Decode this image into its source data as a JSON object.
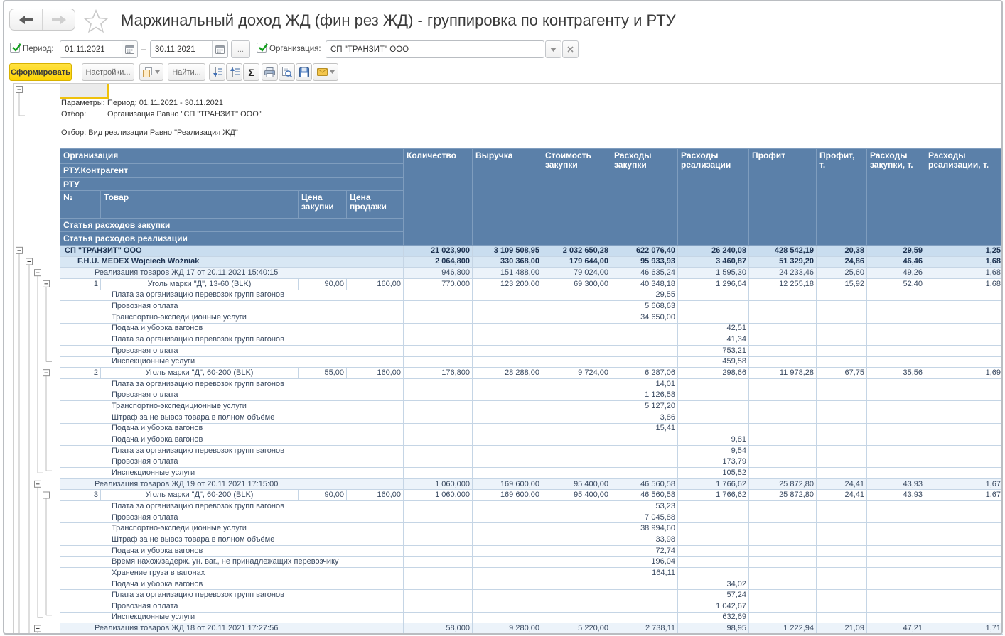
{
  "titlebar": {
    "title": "Маржинальный доход ЖД (фин рез ЖД) - группировка по контрагенту и РТУ"
  },
  "filters": {
    "period_label": "Период:",
    "period_from": "01.11.2021",
    "period_dash": "–",
    "period_to": "30.11.2021",
    "more_button": "...",
    "org_label": "Организация:",
    "org_value": "СП \"ТРАНЗИТ\" ООО"
  },
  "actions": {
    "generate": "Сформировать",
    "settings": "Настройки...",
    "find": "Найти...",
    "sigma": "Σ"
  },
  "params": {
    "label_params": "Параметры:",
    "value_params": "Период: 01.11.2021 - 30.11.2021",
    "label_filter": "Отбор:",
    "value_filter": "Организация Равно \"СП \"ТРАНЗИТ\" ООО\"",
    "filter2": "Отбор: Вид реализации Равно \"Реализация ЖД\""
  },
  "colors": {
    "header_bg": "#5b80a9",
    "accent_yellow": "#fdd404",
    "level1_bg": "#c9ddef",
    "level2_bg": "#d8e7f4",
    "level3_bg": "#ecf3fa"
  },
  "table": {
    "headers": {
      "org": "Организация",
      "contragent": "РТУ.Контрагент",
      "rtu": "РТУ",
      "num": "№",
      "product": "Товар",
      "purchase_price": "Цена закупки",
      "sell_price": "Цена продажи",
      "expense_purchase": "Статья расходов закупки",
      "expense_sales": "Статья расходов реализации",
      "value_cols": [
        "Количество",
        "Выручка",
        "Стоимость закупки",
        "Расходы закупки",
        "Расходы реализации",
        "Профит",
        "Профит, т.",
        "Расходы закупки, т.",
        "Расходы реализации, т."
      ]
    },
    "rows": [
      {
        "t": "org",
        "label": "СП \"ТРАНЗИТ\" ООО",
        "v": [
          "21 023,900",
          "3 109 508,95",
          "2 032 650,28",
          "622 076,40",
          "26 240,08",
          "428 542,19",
          "20,38",
          "29,59",
          "1,25"
        ]
      },
      {
        "t": "contragent",
        "label": "F.H.U. MEDEX Wojciech Woźniak",
        "v": [
          "2 064,800",
          "330 368,00",
          "179 644,00",
          "95 933,93",
          "3 460,87",
          "51 329,20",
          "24,86",
          "46,46",
          "1,68"
        ]
      },
      {
        "t": "rtu",
        "label": "Реализация товаров ЖД 17 от 20.11.2021 15:40:15",
        "v": [
          "946,800",
          "151 488,00",
          "79 024,00",
          "46 635,24",
          "1 595,30",
          "24 233,46",
          "25,60",
          "49,26",
          "1,68"
        ]
      },
      {
        "t": "item",
        "num": "1",
        "product": "Уголь марки \"Д\", 13-60 (BLK)",
        "pp": "90,00",
        "sp": "160,00",
        "v": [
          "770,000",
          "123 200,00",
          "69 300,00",
          "40 348,18",
          "1 296,64",
          "12 255,18",
          "15,92",
          "52,40",
          "1,68"
        ]
      },
      {
        "t": "exp",
        "label": "Плата за организацию перевозок групп вагонов",
        "ci": 3,
        "val": "29,55"
      },
      {
        "t": "exp",
        "label": "Провозная оплата",
        "ci": 3,
        "val": "5 668,63"
      },
      {
        "t": "exp",
        "label": "Транспортно-экспедиционные услуги",
        "ci": 3,
        "val": "34 650,00"
      },
      {
        "t": "exp",
        "label": "Подача и уборка вагонов",
        "ci": 4,
        "val": "42,51"
      },
      {
        "t": "exp",
        "label": "Плата за организацию перевозок групп вагонов",
        "ci": 4,
        "val": "41,34"
      },
      {
        "t": "exp",
        "label": "Провозная оплата",
        "ci": 4,
        "val": "753,21"
      },
      {
        "t": "exp",
        "label": "Инспекционные услуги",
        "ci": 4,
        "val": "459,58"
      },
      {
        "t": "item",
        "num": "2",
        "product": "Уголь марки \"Д\", 60-200 (BLK)",
        "pp": "55,00",
        "sp": "160,00",
        "v": [
          "176,800",
          "28 288,00",
          "9 724,00",
          "6 287,06",
          "298,66",
          "11 978,28",
          "67,75",
          "35,56",
          "1,69"
        ]
      },
      {
        "t": "exp",
        "label": "Плата за организацию перевозок групп вагонов",
        "ci": 3,
        "val": "14,01"
      },
      {
        "t": "exp",
        "label": "Провозная оплата",
        "ci": 3,
        "val": "1 126,58"
      },
      {
        "t": "exp",
        "label": "Транспортно-экспедиционные услуги",
        "ci": 3,
        "val": "5 127,20"
      },
      {
        "t": "exp",
        "label": "Штраф за не вывоз товара в полном объёме",
        "ci": 3,
        "val": "3,86"
      },
      {
        "t": "exp",
        "label": "Подача и уборка вагонов",
        "ci": 3,
        "val": "15,41"
      },
      {
        "t": "exp",
        "label": "Подача и уборка вагонов",
        "ci": 4,
        "val": "9,81"
      },
      {
        "t": "exp",
        "label": "Плата за организацию перевозок групп вагонов",
        "ci": 4,
        "val": "9,54"
      },
      {
        "t": "exp",
        "label": "Провозная оплата",
        "ci": 4,
        "val": "173,79"
      },
      {
        "t": "exp",
        "label": "Инспекционные услуги",
        "ci": 4,
        "val": "105,52"
      },
      {
        "t": "rtu",
        "label": "Реализация товаров ЖД 19 от 20.11.2021 17:15:00",
        "v": [
          "1 060,000",
          "169 600,00",
          "95 400,00",
          "46 560,58",
          "1 766,62",
          "25 872,80",
          "24,41",
          "43,93",
          "1,67"
        ]
      },
      {
        "t": "item",
        "num": "3",
        "product": "Уголь марки \"Д\", 60-200 (BLK)",
        "pp": "90,00",
        "sp": "160,00",
        "v": [
          "1 060,000",
          "169 600,00",
          "95 400,00",
          "46 560,58",
          "1 766,62",
          "25 872,80",
          "24,41",
          "43,93",
          "1,67"
        ]
      },
      {
        "t": "exp",
        "label": "Плата за организацию перевозок групп вагонов",
        "ci": 3,
        "val": "53,23"
      },
      {
        "t": "exp",
        "label": "Провозная оплата",
        "ci": 3,
        "val": "7 045,88"
      },
      {
        "t": "exp",
        "label": "Транспортно-экспедиционные услуги",
        "ci": 3,
        "val": "38 994,60"
      },
      {
        "t": "exp",
        "label": "Штраф за не вывоз товара в полном объёме",
        "ci": 3,
        "val": "33,98"
      },
      {
        "t": "exp",
        "label": "Подача и уборка вагонов",
        "ci": 3,
        "val": "72,74"
      },
      {
        "t": "exp",
        "label": "Время нахож/задерж. ун. ваг., не принадлежащих перевозчику",
        "ci": 3,
        "val": "196,04"
      },
      {
        "t": "exp",
        "label": "Хранение груза в вагонах",
        "ci": 3,
        "val": "164,11"
      },
      {
        "t": "exp",
        "label": "Подача и уборка вагонов",
        "ci": 4,
        "val": "34,02"
      },
      {
        "t": "exp",
        "label": "Плата за организацию перевозок групп вагонов",
        "ci": 4,
        "val": "57,24"
      },
      {
        "t": "exp",
        "label": "Провозная оплата",
        "ci": 4,
        "val": "1 042,67"
      },
      {
        "t": "exp",
        "label": "Инспекционные услуги",
        "ci": 4,
        "val": "632,69"
      },
      {
        "t": "rtu",
        "label": "Реализация товаров ЖД 18 от 20.11.2021 17:27:56",
        "v": [
          "58,000",
          "9 280,00",
          "5 220,00",
          "2 738,11",
          "98,95",
          "1 222,94",
          "21,09",
          "47,21",
          "1,71"
        ]
      }
    ]
  }
}
